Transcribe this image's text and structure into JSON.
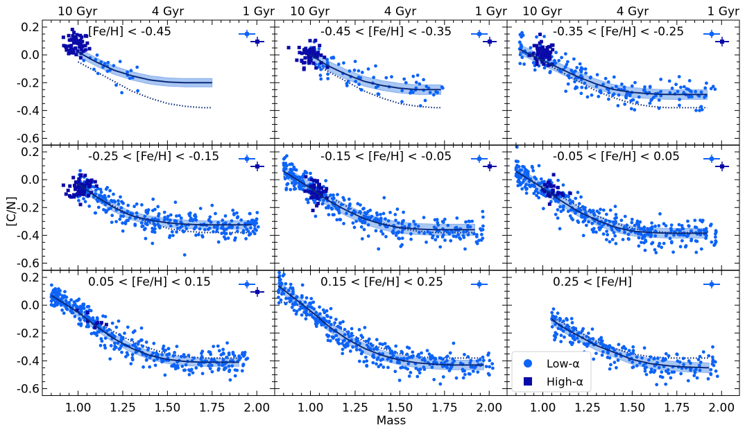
{
  "figure": {
    "xlabel": "Mass",
    "ylabel": "[C/N]",
    "age_labels": [
      "10 Gyr",
      "4 Gyr",
      "1 Gyr"
    ],
    "legend": [
      {
        "label": "Low-α",
        "marker": "circle",
        "color": "#0d63f7"
      },
      {
        "label": "High-α",
        "marker": "square",
        "color": "#0a0aa8"
      }
    ],
    "colors": {
      "low_alpha": "#0d63f7",
      "high_alpha": "#0a0aa8",
      "fit_line": "#0a2a7a",
      "fit_band": "#a9c7f3",
      "dotted": "#0a2a7a"
    }
  },
  "chart_data": {
    "type": "scatter",
    "xlim": [
      0.8,
      2.1
    ],
    "ylim": [
      -0.65,
      0.25
    ],
    "xticks": [
      1.0,
      1.25,
      1.5,
      1.75,
      2.0
    ],
    "xtick_labels": [
      "1.00",
      "1.25",
      "1.50",
      "1.75",
      "2.00"
    ],
    "yticks": [
      -0.6,
      -0.4,
      -0.2,
      0.0,
      0.2
    ],
    "ytick_labels": [
      "-0.6",
      "-0.4",
      "-0.2",
      "0.0",
      "0.2"
    ],
    "reference_curve": {
      "style": "dotted",
      "x": [
        0.9,
        1.0,
        1.1,
        1.2,
        1.3,
        1.4,
        1.5,
        1.6,
        1.7,
        1.8,
        1.95
      ],
      "y": [
        0.02,
        -0.05,
        -0.12,
        -0.19,
        -0.26,
        -0.31,
        -0.35,
        -0.37,
        -0.38,
        -0.38,
        -0.38
      ]
    },
    "panels": [
      {
        "title": "[Fe/H] < -0.45",
        "fit": {
          "x": [
            1.0,
            1.1,
            1.2,
            1.3,
            1.4,
            1.5,
            1.6,
            1.7,
            1.75
          ],
          "y": [
            0.02,
            -0.05,
            -0.11,
            -0.15,
            -0.18,
            -0.195,
            -0.2,
            -0.2,
            -0.2
          ]
        },
        "band": 0.03,
        "dotted_range": [
          1.0,
          1.75
        ],
        "low_alpha_center": [
          1.15,
          -0.08
        ],
        "high_alpha_center": [
          0.99,
          0.07
        ],
        "n_low": 25,
        "n_high": 60,
        "error_markers": 2
      },
      {
        "title": "-0.45 < [Fe/H] < -0.35",
        "fit": {
          "x": [
            1.0,
            1.1,
            1.2,
            1.3,
            1.4,
            1.5,
            1.6,
            1.7,
            1.73
          ],
          "y": [
            0.0,
            -0.08,
            -0.14,
            -0.19,
            -0.22,
            -0.24,
            -0.25,
            -0.25,
            -0.25
          ]
        },
        "band": 0.035,
        "dotted_range": [
          1.0,
          1.73
        ],
        "low_alpha_center": [
          1.25,
          -0.15
        ],
        "high_alpha_center": [
          1.0,
          0.0
        ],
        "n_low": 80,
        "n_high": 60,
        "error_markers": 2
      },
      {
        "title": "-0.35 < [Fe/H] < -0.25",
        "fit": {
          "x": [
            0.87,
            1.0,
            1.1,
            1.2,
            1.3,
            1.4,
            1.5,
            1.6,
            1.7,
            1.8,
            1.92
          ],
          "y": [
            0.04,
            -0.04,
            -0.1,
            -0.16,
            -0.21,
            -0.25,
            -0.27,
            -0.28,
            -0.285,
            -0.285,
            -0.285
          ]
        },
        "band": 0.035,
        "dotted_range": [
          0.87,
          1.92
        ],
        "low_alpha_center": [
          1.3,
          -0.2
        ],
        "high_alpha_center": [
          1.0,
          0.0
        ],
        "n_low": 200,
        "n_high": 60,
        "error_markers": 2
      },
      {
        "title": "-0.25 < [Fe/H] < -0.15",
        "fit": {
          "x": [
            1.0,
            1.1,
            1.2,
            1.3,
            1.4,
            1.5,
            1.6,
            1.7,
            1.8,
            1.9,
            1.97
          ],
          "y": [
            -0.03,
            -0.12,
            -0.2,
            -0.26,
            -0.29,
            -0.31,
            -0.32,
            -0.325,
            -0.325,
            -0.325,
            -0.325
          ]
        },
        "band": 0.03,
        "dotted_range": [
          1.0,
          1.97
        ],
        "low_alpha_center": [
          1.35,
          -0.27
        ],
        "high_alpha_center": [
          1.02,
          -0.05
        ],
        "n_low": 320,
        "n_high": 60,
        "error_markers": 2
      },
      {
        "title": "-0.15 < [Fe/H] < -0.05",
        "fit": {
          "x": [
            0.85,
            1.0,
            1.1,
            1.2,
            1.3,
            1.4,
            1.5,
            1.6,
            1.7,
            1.8,
            1.92
          ],
          "y": [
            0.06,
            -0.06,
            -0.15,
            -0.22,
            -0.28,
            -0.32,
            -0.345,
            -0.355,
            -0.36,
            -0.36,
            -0.36
          ]
        },
        "band": 0.04,
        "dotted_range": [
          0.85,
          1.92
        ],
        "low_alpha_center": [
          1.35,
          -0.3
        ],
        "high_alpha_center": [
          1.03,
          -0.08
        ],
        "n_low": 360,
        "n_high": 40,
        "error_markers": 2
      },
      {
        "title": "-0.05 < [Fe/H] < 0.05",
        "fit": {
          "x": [
            0.85,
            1.0,
            1.1,
            1.2,
            1.3,
            1.4,
            1.5,
            1.6,
            1.7,
            1.8,
            1.92
          ],
          "y": [
            0.06,
            -0.06,
            -0.15,
            -0.23,
            -0.29,
            -0.34,
            -0.37,
            -0.38,
            -0.385,
            -0.385,
            -0.385
          ]
        },
        "band": 0.035,
        "dotted_range": [
          0.85,
          1.92
        ],
        "low_alpha_center": [
          1.35,
          -0.3
        ],
        "high_alpha_center": [
          1.05,
          -0.08
        ],
        "n_low": 380,
        "n_high": 25,
        "error_markers": 2
      },
      {
        "title": "0.05 < [Fe/H] < 0.15",
        "fit": {
          "x": [
            0.85,
            1.0,
            1.1,
            1.2,
            1.3,
            1.4,
            1.5,
            1.6,
            1.7,
            1.8,
            1.9
          ],
          "y": [
            0.07,
            -0.05,
            -0.15,
            -0.24,
            -0.31,
            -0.36,
            -0.39,
            -0.405,
            -0.41,
            -0.41,
            -0.41
          ]
        },
        "band": 0.03,
        "dotted_range": [
          0.85,
          1.9
        ],
        "low_alpha_center": [
          1.4,
          -0.33
        ],
        "high_alpha_center": [
          1.08,
          -0.12
        ],
        "n_low": 380,
        "n_high": 8,
        "error_markers": 2
      },
      {
        "title": "0.15 < [Fe/H] < 0.25",
        "fit": {
          "x": [
            0.82,
            1.0,
            1.1,
            1.2,
            1.3,
            1.4,
            1.5,
            1.6,
            1.7,
            1.8,
            1.97
          ],
          "y": [
            0.14,
            -0.04,
            -0.15,
            -0.24,
            -0.31,
            -0.36,
            -0.395,
            -0.415,
            -0.425,
            -0.43,
            -0.43
          ]
        },
        "band": 0.035,
        "dotted_range": [
          0.82,
          1.97
        ],
        "low_alpha_center": [
          1.35,
          -0.33
        ],
        "high_alpha_center": null,
        "n_low": 360,
        "n_high": 0,
        "error_markers": 1
      },
      {
        "title": "0.25 < [Fe/H]",
        "fit": {
          "x": [
            1.05,
            1.1,
            1.2,
            1.3,
            1.4,
            1.5,
            1.6,
            1.7,
            1.8,
            1.93
          ],
          "y": [
            -0.1,
            -0.15,
            -0.22,
            -0.29,
            -0.34,
            -0.39,
            -0.42,
            -0.435,
            -0.445,
            -0.45
          ]
        },
        "band": 0.035,
        "dotted_range": [
          1.05,
          1.93
        ],
        "low_alpha_center": [
          1.4,
          -0.3
        ],
        "high_alpha_center": null,
        "n_low": 220,
        "n_high": 0,
        "error_markers": 1
      }
    ]
  }
}
